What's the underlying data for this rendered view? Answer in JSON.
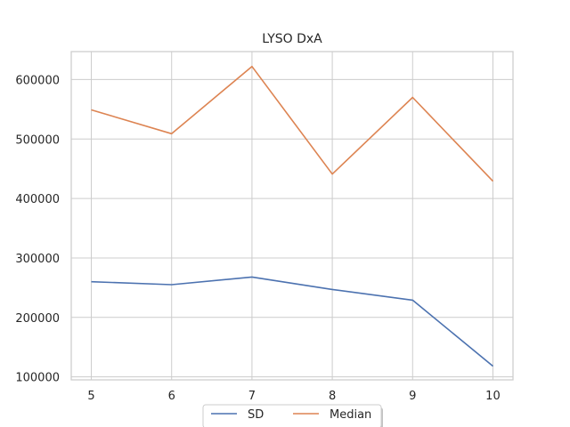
{
  "chart_data": {
    "type": "line",
    "title": "LYSO DxA",
    "xlabel": "",
    "ylabel": "",
    "x": [
      5,
      6,
      7,
      8,
      9,
      10
    ],
    "xlim": [
      4.75,
      10.25
    ],
    "ylim": [
      95000,
      647000
    ],
    "xticks": [
      5,
      6,
      7,
      8,
      9,
      10
    ],
    "yticks": [
      100000,
      200000,
      300000,
      400000,
      500000,
      600000
    ],
    "xtick_labels": [
      "5",
      "6",
      "7",
      "8",
      "9",
      "10"
    ],
    "ytick_labels": [
      "100000",
      "200000",
      "300000",
      "400000",
      "500000",
      "600000"
    ],
    "grid": true,
    "legend_position": "bottom-center",
    "series": [
      {
        "name": "SD",
        "color": "#4c72b0",
        "values": [
          260000,
          255000,
          268000,
          247000,
          229000,
          118000
        ]
      },
      {
        "name": "Median",
        "color": "#dd8452",
        "values": [
          549000,
          509000,
          622000,
          441000,
          570000,
          429000
        ]
      }
    ]
  }
}
